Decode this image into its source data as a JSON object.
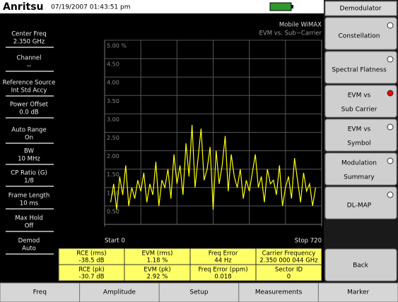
{
  "header": {
    "brand": "Anritsu",
    "datetime": "07/19/2007 01:43:51 pm"
  },
  "parameters": [
    {
      "label": "Center Freq",
      "value": "2.350 GHz"
    },
    {
      "label": "Channel",
      "value": "--"
    },
    {
      "label": "Reference Source",
      "value": "Int Std Accy"
    },
    {
      "label": "Power Offset",
      "value": "0.0 dB"
    },
    {
      "label": "Auto Range",
      "value": "On"
    },
    {
      "label": "BW",
      "value": "10 MHz"
    },
    {
      "label": "CP Ratio (G)",
      "value": "1/8"
    },
    {
      "label": "Frame Length",
      "value": "10 ms"
    },
    {
      "label": "Max Hold",
      "value": "Off"
    },
    {
      "label": "Demod",
      "value": "Auto"
    }
  ],
  "chart_data": {
    "type": "line",
    "title": "Mobile WiMAX",
    "subtitle": "EVM vs. Sub−Carrier",
    "x": [
      20,
      30,
      40,
      50,
      60,
      70,
      80,
      90,
      100,
      110,
      120,
      130,
      140,
      150,
      160,
      170,
      180,
      190,
      200,
      210,
      220,
      230,
      240,
      250,
      260,
      270,
      280,
      290,
      300,
      310,
      320,
      330,
      340,
      350,
      360,
      370,
      380,
      390,
      400,
      410,
      420,
      430,
      440,
      450,
      460,
      470,
      480,
      490,
      500,
      510,
      520,
      530,
      540,
      550,
      560,
      570,
      580,
      590,
      600,
      610,
      620,
      630,
      640,
      650,
      660,
      670,
      680,
      690,
      700
    ],
    "series": [
      {
        "color": "#ffff00",
        "values": [
          0.6,
          1.1,
          0.4,
          1.3,
          0.8,
          1.6,
          0.5,
          1.0,
          0.7,
          1.2,
          0.9,
          1.4,
          0.6,
          1.1,
          0.8,
          1.7,
          0.5,
          1.2,
          1.0,
          1.5,
          0.7,
          1.9,
          1.1,
          1.6,
          0.8,
          2.2,
          1.3,
          2.7,
          1.0,
          1.8,
          2.6,
          1.2,
          1.5,
          2.1,
          0.4,
          2.0,
          1.1,
          1.6,
          2.4,
          0.9,
          1.9,
          1.3,
          1.0,
          1.5,
          0.7,
          1.2,
          0.9,
          1.4,
          1.9,
          1.0,
          1.3,
          0.6,
          1.5,
          1.1,
          1.2,
          0.8,
          1.6,
          0.5,
          1.0,
          1.3,
          0.7,
          1.8,
          1.2,
          0.6,
          1.4,
          0.9,
          1.1,
          0.5,
          1.0
        ]
      }
    ],
    "xlim": [
      0,
      720
    ],
    "xticks": [
      {
        "value": 0,
        "label": "Start  0"
      },
      {
        "value": 720,
        "label": "Stop 720"
      }
    ],
    "ylim": [
      0,
      5
    ],
    "yticks": [
      {
        "value": 0.5,
        "label": "0.50"
      },
      {
        "value": 1,
        "label": "1.00"
      },
      {
        "value": 1.5,
        "label": "1.50"
      },
      {
        "value": 2,
        "label": "2.00"
      },
      {
        "value": 2.5,
        "label": "2.50"
      },
      {
        "value": 3,
        "label": "3.00"
      },
      {
        "value": 3.5,
        "label": "3.50"
      },
      {
        "value": 4,
        "label": "4.00"
      },
      {
        "value": 4.5,
        "label": "4.50"
      },
      {
        "value": 5,
        "label": "5.00 %"
      }
    ],
    "grid": true
  },
  "menu": {
    "title": "Demodulator",
    "buttons": [
      {
        "lines": [
          "Constellation"
        ],
        "selected": false
      },
      {
        "lines": [
          "Spectral Flatness"
        ],
        "selected": false
      },
      {
        "lines": [
          "EVM vs",
          "Sub Carrier"
        ],
        "selected": true
      },
      {
        "lines": [
          "EVM vs",
          "Symbol"
        ],
        "selected": false
      },
      {
        "lines": [
          "Modulation",
          "Summary"
        ],
        "selected": false
      },
      {
        "lines": [
          "DL-MAP"
        ],
        "selected": false
      }
    ],
    "back": "Back"
  },
  "measurements": [
    [
      {
        "label": "RCE (rms)",
        "value": "-38.5 dB"
      },
      {
        "label": "EVM (rms)",
        "value": "1.18 %"
      },
      {
        "label": "Freq Error",
        "value": "44 Hz"
      },
      {
        "label": "Carrier Frequency",
        "value": "2.350 000 044 GHz"
      }
    ],
    [
      {
        "label": "RCE (pk)",
        "value": "-30.7 dB"
      },
      {
        "label": "EVM (pk)",
        "value": "2.92 %"
      },
      {
        "label": "Freq Error (ppm)",
        "value": "0.018"
      },
      {
        "label": "Sector ID",
        "value": "0"
      }
    ]
  ],
  "softkeys": [
    "Freq",
    "Amplitude",
    "Setup",
    "Measurements",
    "Marker"
  ]
}
